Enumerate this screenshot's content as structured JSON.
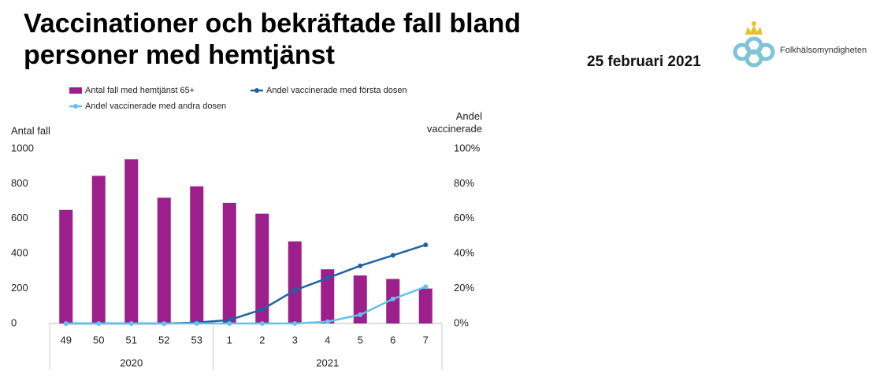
{
  "header": {
    "title": "Vaccinationer och bekräftade fall bland personer med hemtjänst",
    "date": "25 februari 2021",
    "logo": "Folkhälsomyndigheten"
  },
  "chart_data": {
    "type": "bar-line",
    "y_label": "Antal fall",
    "y2_label": "Andel vaccinerade",
    "category_groups": [
      {
        "name": "2020",
        "categories": [
          "49",
          "50",
          "51",
          "52",
          "53"
        ]
      },
      {
        "name": "2021",
        "categories": [
          "1",
          "2",
          "3",
          "4",
          "5",
          "6",
          "7"
        ]
      }
    ],
    "series": [
      {
        "name": "Antal fall med hemtjänst 65+",
        "type": "bar",
        "color": "#9c1f8c",
        "values": [
          650,
          845,
          940,
          720,
          785,
          690,
          628,
          470,
          310,
          275,
          255,
          200
        ]
      },
      {
        "name": "Andel vaccinerade med första dosen",
        "type": "line",
        "axis": "y2",
        "color": "#1f63a3",
        "values": [
          0,
          0,
          0,
          0,
          0.5,
          2,
          8,
          19,
          26,
          33,
          39,
          45
        ]
      },
      {
        "name": "Andel vaccinerade med andra dosen",
        "type": "line",
        "axis": "y2",
        "color": "#63c2ea",
        "values": [
          0,
          0,
          0,
          0,
          0,
          0,
          0,
          0,
          1,
          5,
          14,
          21
        ]
      }
    ],
    "ylim": [
      0,
      1000
    ],
    "yticks": [
      0,
      200,
      400,
      600,
      800,
      1000
    ],
    "y2lim": [
      0,
      100
    ],
    "y2ticks": [
      {
        "value": 0,
        "label": "0%"
      },
      {
        "value": 20,
        "label": "20%"
      },
      {
        "value": 40,
        "label": "40%"
      },
      {
        "value": 60,
        "label": "60%"
      },
      {
        "value": 80,
        "label": "80%"
      },
      {
        "value": 100,
        "label": "100%"
      }
    ]
  }
}
